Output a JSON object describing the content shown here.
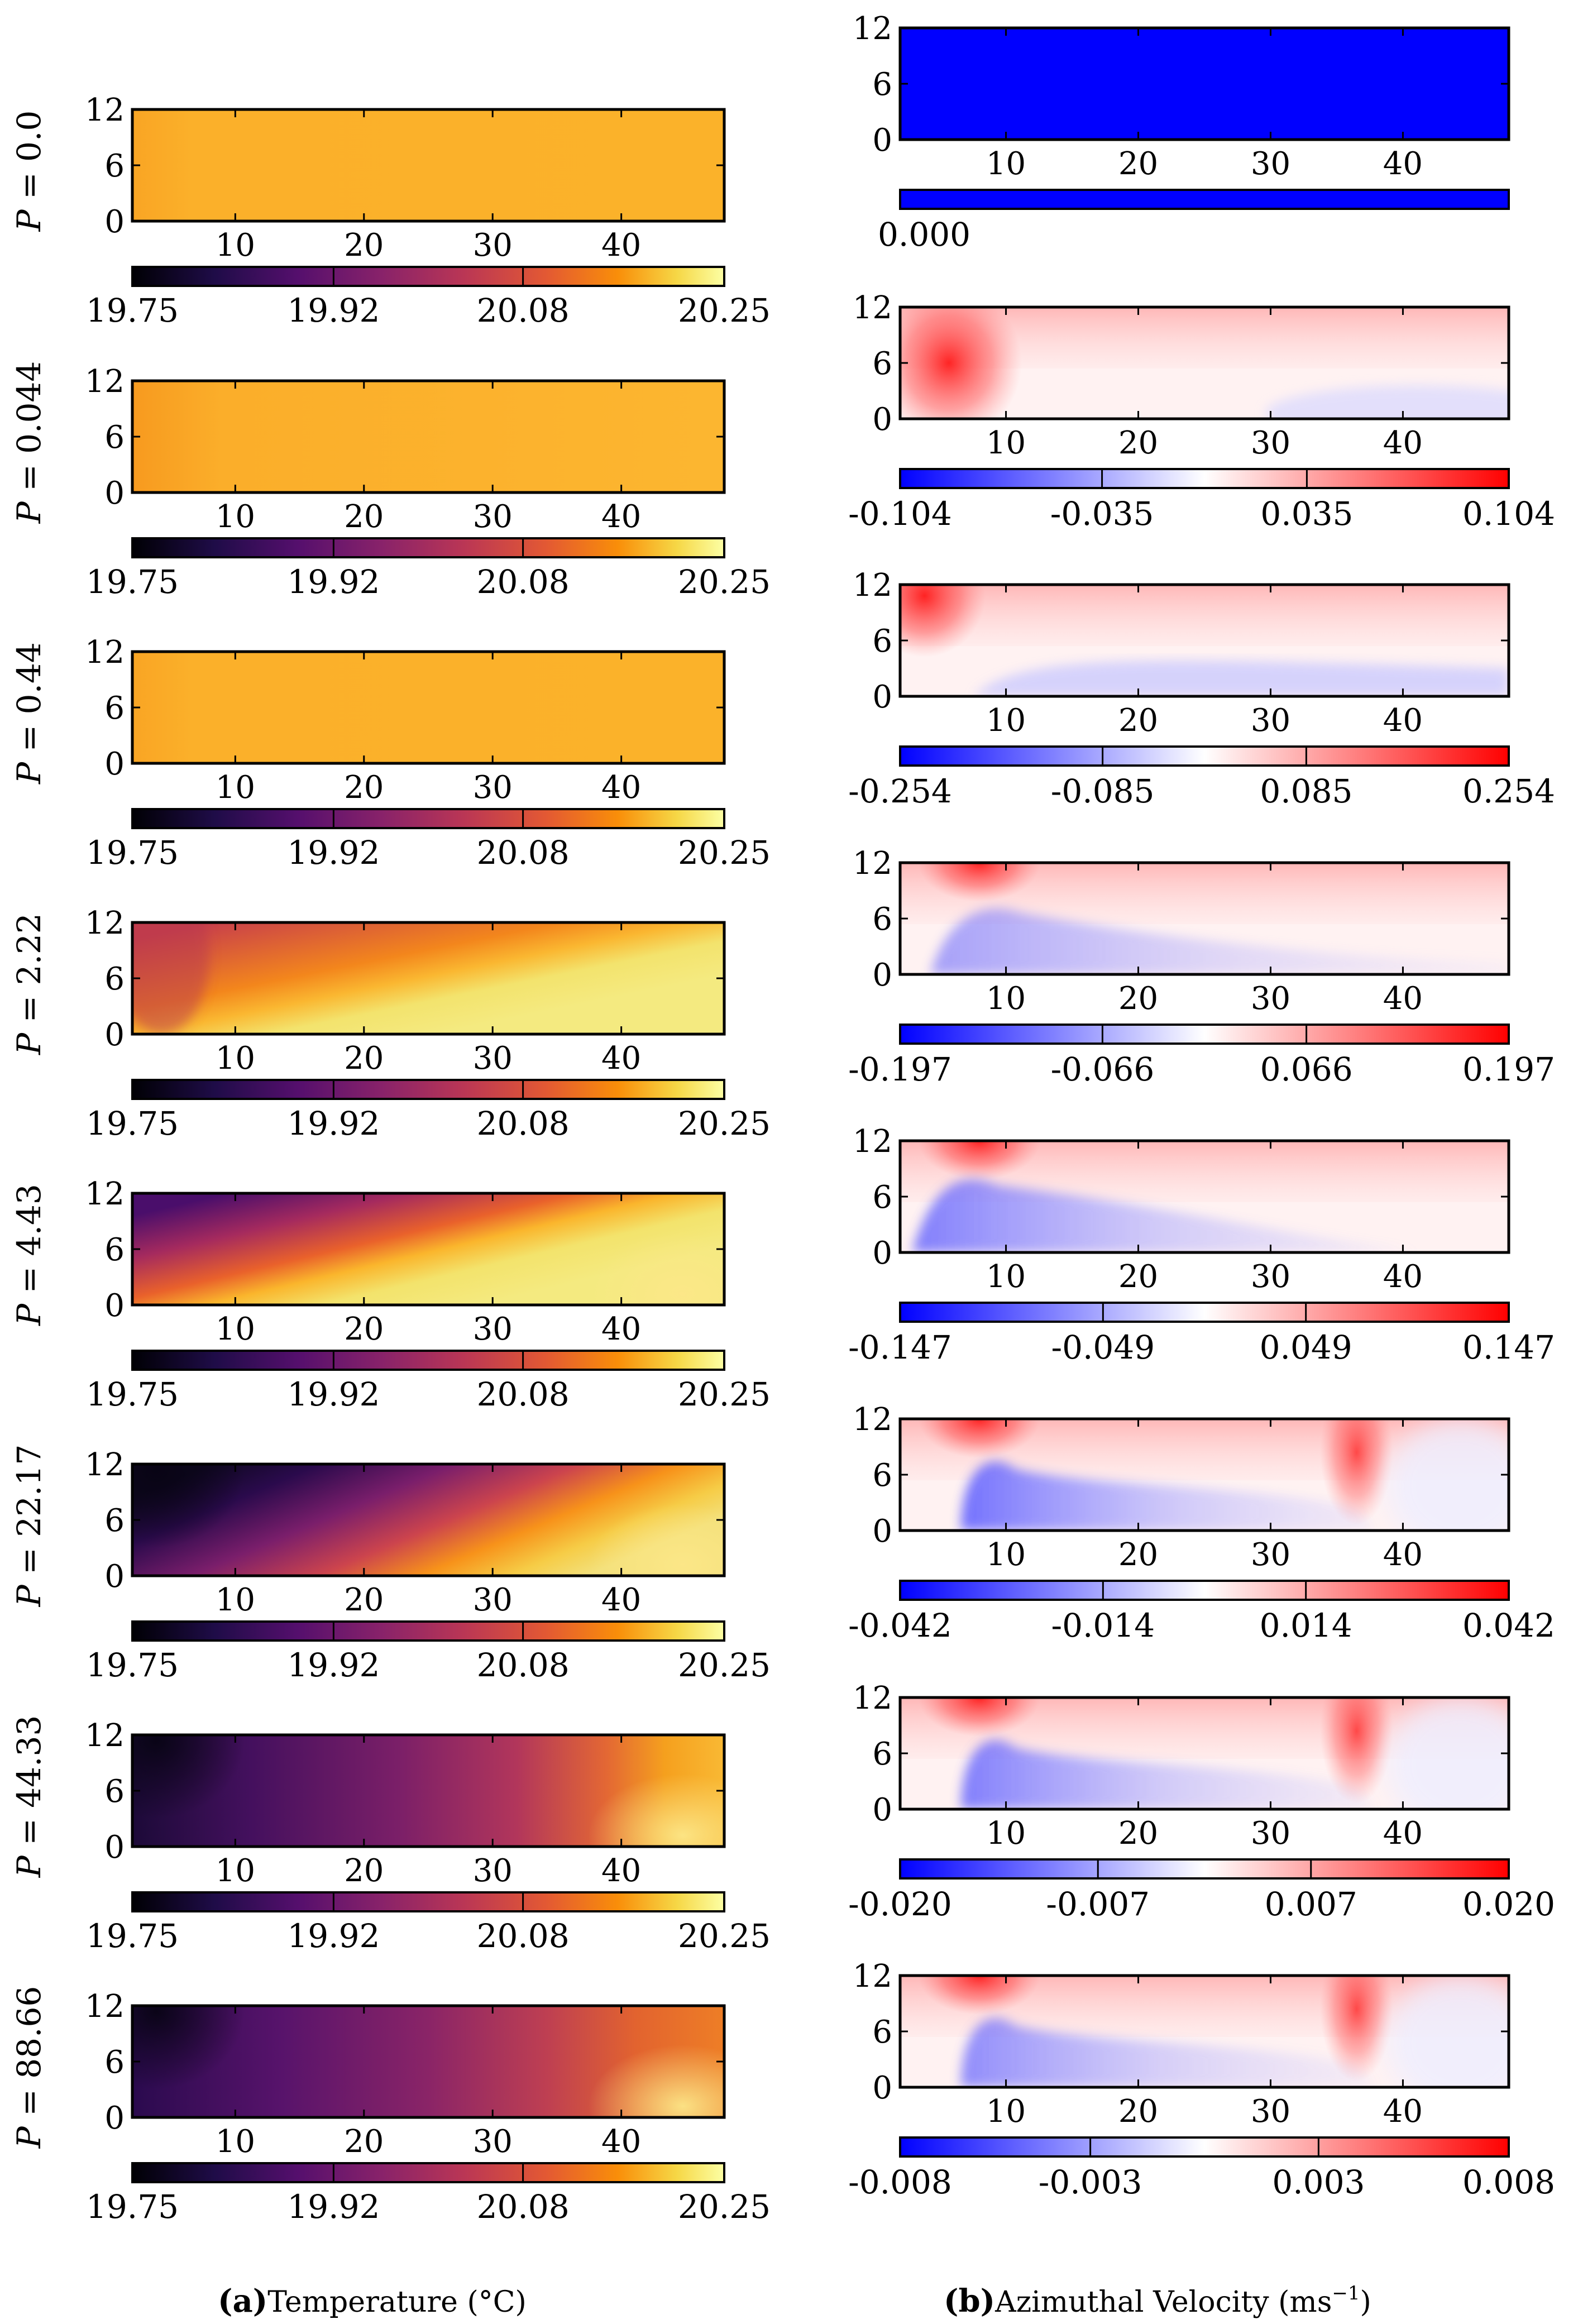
{
  "figure": {
    "caption_a_letter": "(a)",
    "caption_a_text": "Temperature (°C)",
    "caption_b_letter": "(b)",
    "caption_b_text": "Azimuthal Velocity (ms",
    "caption_b_sup": "−1",
    "caption_b_close": ")"
  },
  "chart_data": [
    {
      "type": "heatmap",
      "panel": "a",
      "title": "Temperature (°C)",
      "colormap": "inferno",
      "xlabel": "",
      "ylabel": "",
      "xlim": [
        2,
        48
      ],
      "ylim": [
        0,
        12
      ],
      "xticks": [
        "10",
        "20",
        "30",
        "40"
      ],
      "yticks": [
        "0",
        "6",
        "12"
      ],
      "colorbar_range": [
        19.75,
        20.25
      ],
      "colorbar_ticks": [
        "19.75",
        "19.92",
        "20.08",
        "20.25"
      ],
      "rows": [
        {
          "label": "P = 0.0",
          "p": "P",
          "eq": " = 0.0"
        },
        {
          "label": "P = 0.044",
          "p": "P",
          "eq": " = 0.044"
        },
        {
          "label": "P = 0.44",
          "p": "P",
          "eq": " = 0.44"
        },
        {
          "label": "P = 2.22",
          "p": "P",
          "eq": " = 2.22"
        },
        {
          "label": "P = 4.43",
          "p": "P",
          "eq": " = 4.43"
        },
        {
          "label": "P = 22.17",
          "p": "P",
          "eq": " = 22.17"
        },
        {
          "label": "P = 44.33",
          "p": "P",
          "eq": " = 44.33"
        },
        {
          "label": "P = 88.66",
          "p": "P",
          "eq": " = 88.66"
        }
      ]
    },
    {
      "type": "heatmap",
      "panel": "b",
      "title": "Azimuthal Velocity (ms−1)",
      "colormap": "bwr",
      "xlabel": "",
      "ylabel": "",
      "xlim": [
        2,
        48
      ],
      "ylim": [
        0,
        12
      ],
      "xticks": [
        "10",
        "20",
        "30",
        "40"
      ],
      "yticks": [
        "0",
        "6",
        "12"
      ],
      "rows": [
        {
          "label": "P = 0.0",
          "colorbar_ticks": [
            "0.000"
          ]
        },
        {
          "label": "P = 0.044",
          "colorbar_ticks": [
            "-0.104",
            "-0.035",
            "0.035",
            "0.104"
          ]
        },
        {
          "label": "P = 0.44",
          "colorbar_ticks": [
            "-0.254",
            "-0.085",
            "0.085",
            "0.254"
          ]
        },
        {
          "label": "P = 2.22",
          "colorbar_ticks": [
            "-0.197",
            "-0.066",
            "0.066",
            "0.197"
          ]
        },
        {
          "label": "P = 4.43",
          "colorbar_ticks": [
            "-0.147",
            "-0.049",
            "0.049",
            "0.147"
          ]
        },
        {
          "label": "P = 22.17",
          "colorbar_ticks": [
            "-0.042",
            "-0.014",
            "0.014",
            "0.042"
          ]
        },
        {
          "label": "P = 44.33",
          "colorbar_ticks": [
            "-0.020",
            "-0.007",
            "0.007",
            "0.020"
          ]
        },
        {
          "label": "P = 88.66",
          "colorbar_ticks": [
            "-0.008",
            "-0.003",
            "0.003",
            "0.008"
          ]
        }
      ]
    }
  ]
}
